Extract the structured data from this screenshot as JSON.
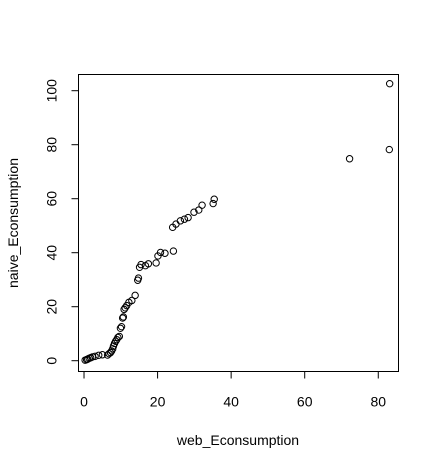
{
  "chart_data": {
    "type": "scatter",
    "title": "",
    "xlabel": "web_Econsumption",
    "ylabel": "naive_Econsumption",
    "xlim": [
      -1.5,
      85.5
    ],
    "ylim": [
      -4,
      106
    ],
    "x_ticks": [
      0,
      20,
      40,
      60,
      80
    ],
    "y_ticks": [
      0,
      20,
      40,
      60,
      80,
      100
    ],
    "grid": false,
    "legend": "none",
    "point_style": "open-circle",
    "points": [
      [
        0.3,
        0.2
      ],
      [
        0.7,
        0.4
      ],
      [
        1.0,
        0.6
      ],
      [
        1.4,
        0.9
      ],
      [
        1.8,
        1.1
      ],
      [
        2.3,
        1.4
      ],
      [
        3.0,
        1.6
      ],
      [
        4.0,
        2.0
      ],
      [
        5.0,
        2.2
      ],
      [
        6.4,
        2.1
      ],
      [
        6.8,
        2.6
      ],
      [
        7.2,
        3.0
      ],
      [
        7.5,
        3.6
      ],
      [
        7.8,
        4.4
      ],
      [
        8.0,
        5.4
      ],
      [
        8.3,
        6.4
      ],
      [
        8.6,
        7.2
      ],
      [
        8.9,
        7.8
      ],
      [
        9.2,
        8.6
      ],
      [
        9.6,
        9.0
      ],
      [
        9.9,
        12.0
      ],
      [
        10.2,
        12.6
      ],
      [
        10.5,
        15.8
      ],
      [
        10.7,
        16.2
      ],
      [
        10.9,
        19.0
      ],
      [
        11.2,
        19.6
      ],
      [
        11.6,
        20.4
      ],
      [
        12.2,
        21.6
      ],
      [
        13.0,
        22.3
      ],
      [
        13.9,
        24.2
      ],
      [
        14.6,
        29.8
      ],
      [
        14.8,
        30.6
      ],
      [
        15.1,
        34.6
      ],
      [
        15.5,
        35.6
      ],
      [
        16.7,
        35.2
      ],
      [
        17.5,
        35.9
      ],
      [
        19.6,
        36.2
      ],
      [
        20.1,
        38.8
      ],
      [
        20.8,
        40.1
      ],
      [
        22.0,
        39.8
      ],
      [
        24.3,
        40.6
      ],
      [
        24.1,
        49.4
      ],
      [
        25.0,
        50.6
      ],
      [
        26.2,
        51.8
      ],
      [
        27.3,
        52.4
      ],
      [
        28.3,
        53.0
      ],
      [
        29.9,
        55.0
      ],
      [
        31.2,
        55.8
      ],
      [
        32.1,
        57.6
      ],
      [
        35.1,
        58.2
      ],
      [
        35.4,
        59.8
      ],
      [
        72.2,
        74.8
      ],
      [
        83.0,
        78.2
      ],
      [
        83.1,
        102.6
      ]
    ]
  }
}
